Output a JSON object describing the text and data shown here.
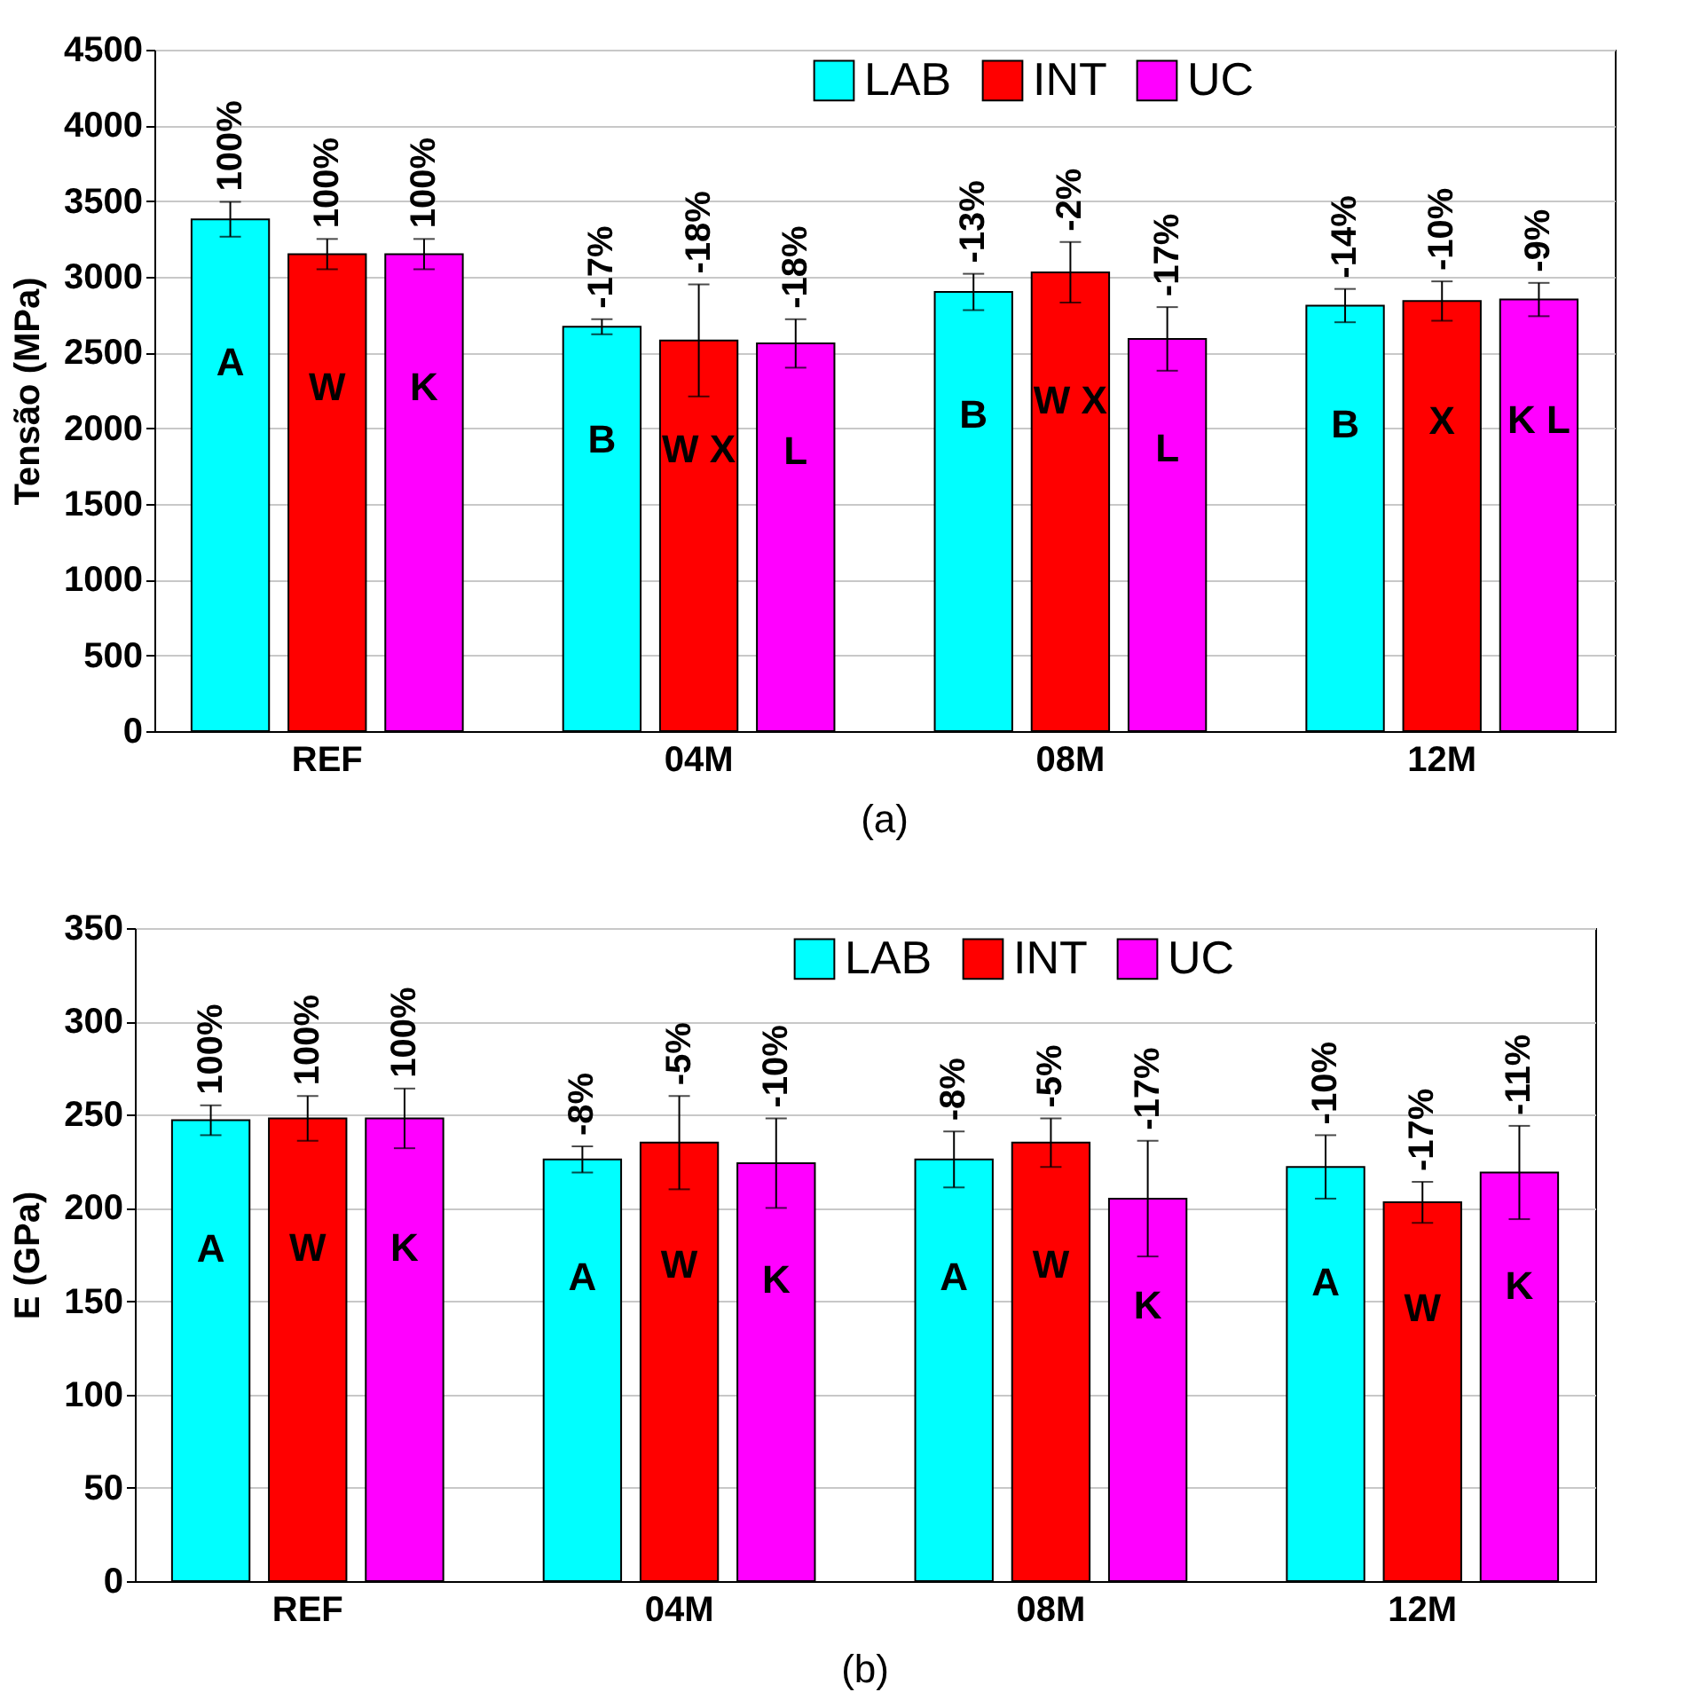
{
  "chart_data": [
    {
      "type": "bar",
      "ylabel": "Tensão (MPa)",
      "categories": [
        "REF",
        "04M",
        "08M",
        "12M"
      ],
      "series": [
        {
          "name": "LAB",
          "color": "#00ffff",
          "values": [
            3380,
            2670,
            2900,
            2810
          ],
          "errors": [
            115,
            50,
            120,
            110
          ]
        },
        {
          "name": "INT",
          "color": "#ff0000",
          "values": [
            3150,
            2580,
            3030,
            2840
          ],
          "errors": [
            100,
            370,
            200,
            130
          ]
        },
        {
          "name": "UC",
          "color": "#ff00ff",
          "values": [
            3150,
            2560,
            2590,
            2850
          ],
          "errors": [
            100,
            160,
            210,
            110
          ]
        }
      ],
      "ylim": [
        0,
        4500
      ],
      "yticks": [
        0,
        500,
        1000,
        1500,
        2000,
        2500,
        3000,
        3500,
        4000,
        4500
      ],
      "grid": "y",
      "legend": "top",
      "annotations": [
        "(a)",
        "100%",
        "-17%",
        "-13%",
        "-14%",
        "100%",
        "-18%",
        "-2%",
        "-10%",
        "100%",
        "-18%",
        "-17%",
        "-9%",
        "A",
        "B",
        "B",
        "B",
        "W",
        "W X",
        "W X",
        "X",
        "K",
        "L",
        "L",
        "K L"
      ]
    },
    {
      "type": "bar",
      "ylabel": "E (GPa)",
      "categories": [
        "REF",
        "04M",
        "08M",
        "12M"
      ],
      "series": [
        {
          "name": "LAB",
          "color": "#00ffff",
          "values": [
            247,
            226,
            226,
            222
          ],
          "errors": [
            8,
            7,
            15,
            17
          ]
        },
        {
          "name": "INT",
          "color": "#ff0000",
          "values": [
            248,
            235,
            235,
            203
          ],
          "errors": [
            12,
            25,
            13,
            11
          ]
        },
        {
          "name": "UC",
          "color": "#ff00ff",
          "values": [
            248,
            224,
            205,
            219
          ],
          "errors": [
            16,
            24,
            31,
            25
          ]
        }
      ],
      "ylim": [
        0,
        350
      ],
      "yticks": [
        0,
        50,
        100,
        150,
        200,
        250,
        300,
        350
      ],
      "grid": "y",
      "legend": "top",
      "annotations": [
        "(b)",
        "100%",
        "-8%",
        "-8%",
        "-10%",
        "100%",
        "-5%",
        "-5%",
        "-17%",
        "100%",
        "-10%",
        "-17%",
        "-11%",
        "A",
        "A",
        "A",
        "A",
        "W",
        "W",
        "W",
        "W",
        "K",
        "K",
        "K",
        "K"
      ]
    }
  ]
}
